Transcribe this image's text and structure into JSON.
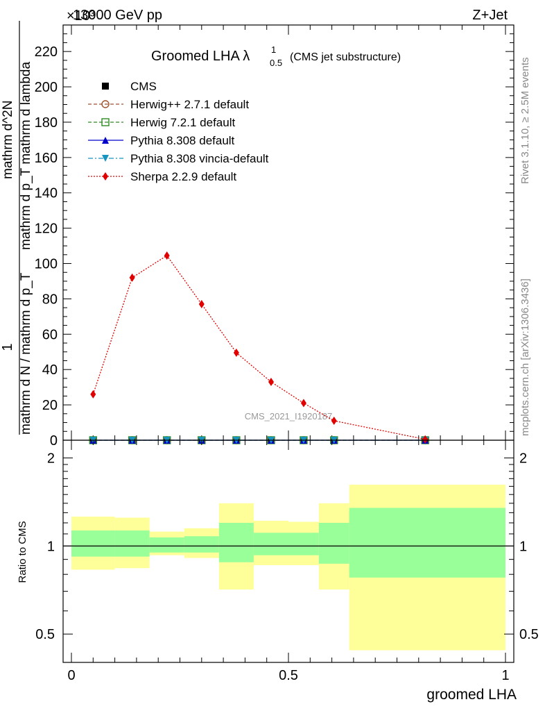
{
  "header": {
    "beam": "13000 GeV pp",
    "process": "Z+Jet",
    "exponent": "×10³"
  },
  "side": {
    "rivet": "Rivet 3.1.10, ≥ 2.5M events",
    "mcplots": "mcplots.cern.ch [arXiv:1306.3436]"
  },
  "ylabel": {
    "num": "1",
    "den": "mathrm d N / mathrm d p_T",
    "top": "mathrm d^2N",
    "bottom": "mathrm d p_T mathrm d lambda"
  },
  "chart_data": [
    {
      "type": "line",
      "title": "Groomed LHA λ",
      "title_sup": "1",
      "title_sub": "0.5",
      "subtitle": "(CMS jet substructure)",
      "watermark": "CMS_2021_I1920187",
      "xlabel": "",
      "ylabel": "",
      "xlim": [
        0,
        1
      ],
      "ylim": [
        0,
        235
      ],
      "y_scale_note": "×10³",
      "yticks": [
        0,
        20,
        40,
        60,
        80,
        100,
        120,
        140,
        160,
        180,
        200,
        220
      ],
      "legend_position": "top-left",
      "series": [
        {
          "name": "CMS",
          "color": "#000000",
          "marker": "square",
          "line": "none",
          "x": [
            0.05,
            0.14,
            0.22,
            0.3,
            0.38,
            0.46,
            0.535,
            0.605,
            0.815
          ],
          "y": [
            0,
            0,
            0,
            0,
            0,
            0,
            0,
            0,
            0
          ]
        },
        {
          "name": "Herwig++ 2.7.1 default",
          "color": "#a0522d",
          "marker": "open-circle",
          "line": "dashed",
          "x": [
            0.05,
            0.14,
            0.22,
            0.3,
            0.38,
            0.46,
            0.535,
            0.605,
            0.815
          ],
          "y": [
            0,
            0,
            0,
            0,
            0,
            0,
            0,
            0,
            0
          ]
        },
        {
          "name": "Herwig 7.2.1 default",
          "color": "#2e8b22",
          "marker": "open-square",
          "line": "dashed",
          "x": [
            0.05,
            0.14,
            0.22,
            0.3,
            0.38,
            0.46,
            0.535,
            0.605,
            0.815
          ],
          "y": [
            0,
            0,
            0,
            0,
            0,
            0,
            0,
            0,
            0
          ]
        },
        {
          "name": "Pythia 8.308 default",
          "color": "#0000cc",
          "marker": "triangle-up",
          "line": "solid",
          "x": [
            0.05,
            0.14,
            0.22,
            0.3,
            0.38,
            0.46,
            0.535,
            0.605,
            0.815
          ],
          "y": [
            0,
            0,
            0,
            0,
            0,
            0,
            0,
            0,
            0
          ]
        },
        {
          "name": "Pythia 8.308 vincia-default",
          "color": "#1793c0",
          "marker": "triangle-down",
          "line": "dashdot",
          "x": [
            0.05,
            0.14,
            0.22,
            0.3,
            0.38,
            0.46,
            0.535,
            0.605,
            0.815
          ],
          "y": [
            0,
            0,
            0,
            0,
            0,
            0,
            0,
            0,
            0
          ]
        },
        {
          "name": "Sherpa 2.2.9 default",
          "color": "#e00000",
          "marker": "diamond",
          "line": "dotted",
          "x": [
            0.05,
            0.14,
            0.22,
            0.3,
            0.38,
            0.46,
            0.535,
            0.605,
            0.815
          ],
          "y": [
            26,
            92,
            104.5,
            77,
            49.5,
            33,
            21,
            11,
            0.5
          ]
        }
      ]
    },
    {
      "type": "area",
      "ylabel": "Ratio to CMS",
      "xlabel": "groomed LHA",
      "xlim": [
        0,
        1
      ],
      "ylim": [
        0.4,
        2.3
      ],
      "y_scale": "log",
      "yticks": [
        0.5,
        1,
        2
      ],
      "xticks": [
        0,
        0.5,
        1
      ],
      "bins": [
        {
          "lo": 0.0,
          "hi": 0.1,
          "stat_lo": 0.92,
          "stat_hi": 1.13,
          "tot_lo": 0.83,
          "tot_hi": 1.26
        },
        {
          "lo": 0.1,
          "hi": 0.18,
          "stat_lo": 0.92,
          "stat_hi": 1.13,
          "tot_lo": 0.84,
          "tot_hi": 1.25
        },
        {
          "lo": 0.18,
          "hi": 0.26,
          "stat_lo": 0.95,
          "stat_hi": 1.07,
          "tot_lo": 0.93,
          "tot_hi": 1.12
        },
        {
          "lo": 0.26,
          "hi": 0.34,
          "stat_lo": 0.95,
          "stat_hi": 1.08,
          "tot_lo": 0.91,
          "tot_hi": 1.15
        },
        {
          "lo": 0.34,
          "hi": 0.42,
          "stat_lo": 0.88,
          "stat_hi": 1.2,
          "tot_lo": 0.71,
          "tot_hi": 1.4
        },
        {
          "lo": 0.42,
          "hi": 0.5,
          "stat_lo": 0.93,
          "stat_hi": 1.11,
          "tot_lo": 0.86,
          "tot_hi": 1.22
        },
        {
          "lo": 0.5,
          "hi": 0.57,
          "stat_lo": 0.93,
          "stat_hi": 1.11,
          "tot_lo": 0.86,
          "tot_hi": 1.21
        },
        {
          "lo": 0.57,
          "hi": 0.64,
          "stat_lo": 0.87,
          "stat_hi": 1.2,
          "tot_lo": 0.71,
          "tot_hi": 1.4
        },
        {
          "lo": 0.64,
          "hi": 1.0,
          "stat_lo": 0.78,
          "stat_hi": 1.35,
          "tot_lo": 0.44,
          "tot_hi": 1.62
        }
      ],
      "colors": {
        "stat": "#99ff99",
        "total": "#ffff99"
      }
    }
  ]
}
